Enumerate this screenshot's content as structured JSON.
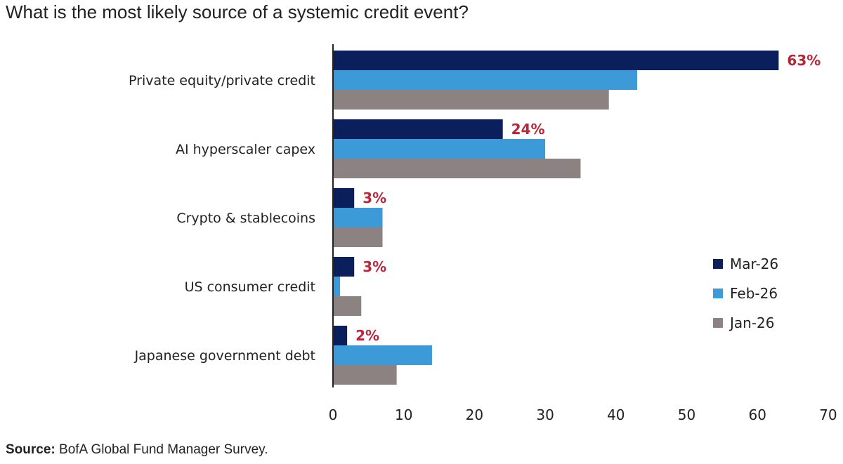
{
  "title": "What is the most likely source of a systemic credit event?",
  "source": {
    "label": "Source:",
    "text": " BofA Global Fund Manager Survey."
  },
  "chart_data": {
    "type": "bar",
    "orientation": "horizontal",
    "title": "What is the most likely source of a systemic credit event?",
    "categories": [
      "Private equity/private credit",
      "AI hyperscaler capex",
      "Crypto & stablecoins",
      "US consumer credit",
      "Japanese government debt"
    ],
    "series": [
      {
        "name": "Mar-26",
        "color": "#0b1f5c",
        "values": [
          63,
          24,
          3,
          3,
          2
        ]
      },
      {
        "name": "Feb-26",
        "color": "#3d9ad9",
        "values": [
          43,
          30,
          7,
          1,
          14
        ]
      },
      {
        "name": "Jan-26",
        "color": "#8c8282",
        "values": [
          39,
          35,
          7,
          4,
          9
        ]
      }
    ],
    "data_labels": [
      "63%",
      "24%",
      "3%",
      "3%",
      "2%"
    ],
    "data_label_color": "#b5283a",
    "xlim": [
      0,
      70
    ],
    "xticks": [
      0,
      10,
      20,
      30,
      40,
      50,
      60,
      70
    ],
    "xlabel": "",
    "ylabel": "",
    "grid": false,
    "legend_position": "right"
  }
}
